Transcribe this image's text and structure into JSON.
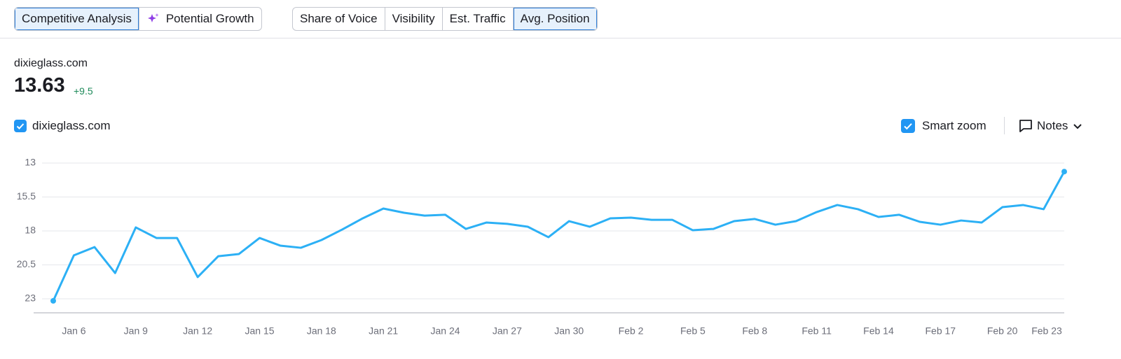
{
  "tabs": {
    "modes": [
      "Competitive Analysis",
      "Potential Growth"
    ],
    "active_mode": 0,
    "metrics": [
      "Share of Voice",
      "Visibility",
      "Est. Traffic",
      "Avg. Position"
    ],
    "active_metric": 3
  },
  "summary": {
    "domain": "dixieglass.com",
    "value": "13.63",
    "change": "+9.5"
  },
  "controls": {
    "smart_zoom": "Smart zoom",
    "notes": "Notes"
  },
  "chart_data": {
    "type": "line",
    "inverted": true,
    "grid": true,
    "categories": [
      null,
      "Jan 6",
      null,
      null,
      "Jan 9",
      null,
      null,
      "Jan 12",
      null,
      null,
      "Jan 15",
      null,
      null,
      "Jan 18",
      null,
      null,
      "Jan 21",
      null,
      null,
      "Jan 24",
      null,
      null,
      "Jan 27",
      null,
      null,
      "Jan 30",
      null,
      null,
      "Feb 2",
      null,
      null,
      "Feb 5",
      null,
      null,
      "Feb 8",
      null,
      null,
      "Feb 11",
      null,
      null,
      "Feb 14",
      null,
      null,
      "Feb 17",
      null,
      null,
      "Feb 20",
      null,
      null,
      "Feb 23"
    ],
    "series": [
      {
        "name": "dixieglass.com",
        "color": "#2cb0f5",
        "values": [
          23.15,
          19.8,
          19.19,
          21.1,
          17.74,
          18.52,
          18.52,
          21.4,
          19.86,
          19.7,
          18.52,
          19.08,
          19.24,
          18.67,
          17.9,
          17.07,
          16.35,
          16.66,
          16.87,
          16.81,
          17.85,
          17.38,
          17.48,
          17.69,
          18.46,
          17.28,
          17.69,
          17.07,
          17.02,
          17.18,
          17.18,
          17.95,
          17.85,
          17.28,
          17.12,
          17.54,
          17.28,
          16.61,
          16.09,
          16.4,
          16.97,
          16.81,
          17.33,
          17.54,
          17.23,
          17.38,
          16.25,
          16.09,
          16.4,
          13.63
        ]
      }
    ],
    "ylim": [
      13,
      24
    ],
    "yticks": [
      13,
      15.5,
      18,
      20.5,
      23
    ]
  }
}
